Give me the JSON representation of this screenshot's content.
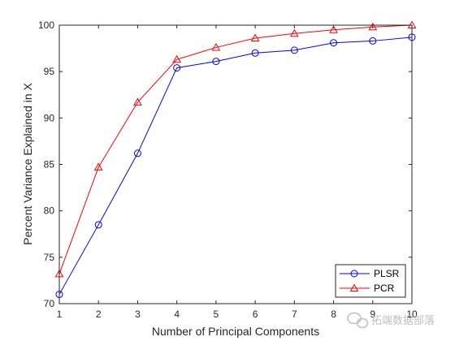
{
  "chart_data": {
    "type": "line",
    "xlabel": "Number of Principal Components",
    "ylabel": "Percent Variance Explained in X",
    "xlim": [
      1,
      10
    ],
    "ylim": [
      70,
      100
    ],
    "xticks": [
      "1",
      "2",
      "3",
      "4",
      "5",
      "6",
      "7",
      "8",
      "9",
      "10"
    ],
    "yticks": [
      "70",
      "75",
      "80",
      "85",
      "90",
      "95",
      "100"
    ],
    "x": [
      1,
      2,
      3,
      4,
      5,
      6,
      7,
      8,
      9,
      10
    ],
    "series": [
      {
        "name": "PLSR",
        "color": "#0000ff",
        "marker": "circle",
        "values": [
          71.0,
          78.5,
          86.2,
          95.4,
          96.1,
          97.0,
          97.3,
          98.1,
          98.3,
          98.7
        ]
      },
      {
        "name": "PCR",
        "color": "#ff0000",
        "marker": "triangle",
        "values": [
          73.2,
          84.7,
          91.7,
          96.3,
          97.6,
          98.6,
          99.1,
          99.5,
          99.8,
          100.0
        ]
      }
    ],
    "legend_position": "bottom-right",
    "grid": false
  },
  "watermark": {
    "icon": "wechat-icon",
    "text": "拓端数据部落"
  }
}
